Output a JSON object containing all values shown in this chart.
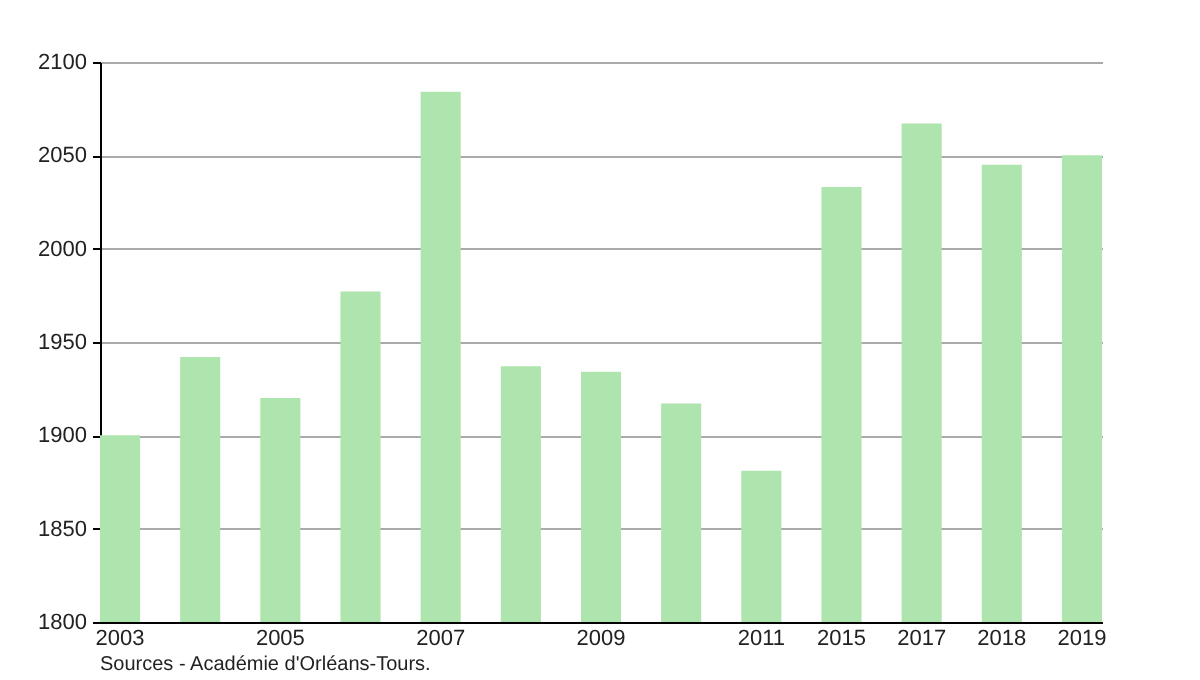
{
  "chart_data": {
    "type": "bar",
    "categories": [
      "2003",
      null,
      "2005",
      null,
      "2007",
      null,
      "2009",
      null,
      "2011",
      "2015",
      "2017",
      "2018",
      "2019"
    ],
    "values": [
      1900,
      1942,
      1920,
      1977,
      2084,
      1937,
      1934,
      1917,
      1881,
      2033,
      2067,
      2045,
      2050
    ],
    "color": "#aee4ad",
    "ylim": [
      1800,
      2100
    ],
    "yticks": [
      1800,
      1850,
      1900,
      1950,
      2000,
      2050,
      2100
    ],
    "grid": "y",
    "annotations": [
      "Sources - Académie d'Orléans-Tours."
    ]
  }
}
